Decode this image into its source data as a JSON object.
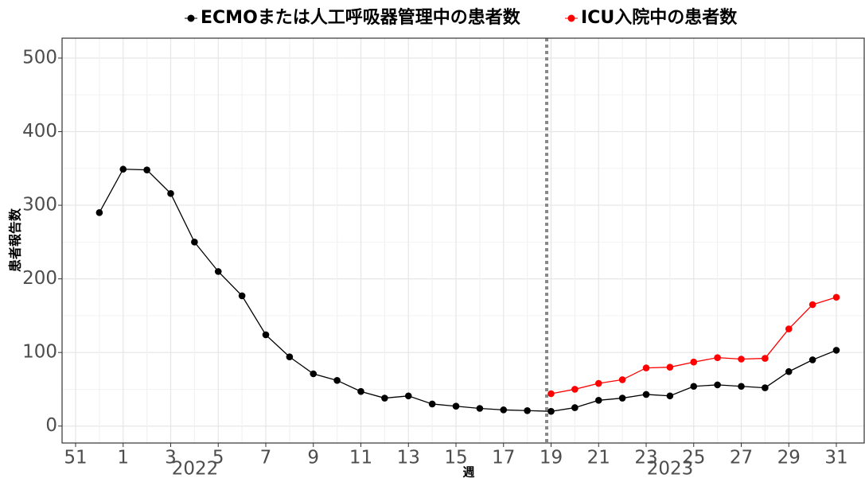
{
  "chart_data": {
    "type": "line",
    "y_label": "患者報告数",
    "x_label": "週",
    "annotations": [
      "2022",
      "2023"
    ],
    "categories": [
      "51",
      null,
      "1",
      null,
      "3",
      null,
      "5",
      null,
      "7",
      null,
      "9",
      null,
      "11",
      null,
      "13",
      null,
      "15",
      null,
      "17",
      null,
      "19",
      null,
      "21",
      null,
      "23",
      null,
      "25",
      null,
      "27",
      null,
      "29",
      null,
      "31"
    ],
    "series": [
      {
        "name": "ECMOまたは人工呼吸器管理中の患者数",
        "color": "#000000",
        "values": [
          null,
          290,
          349,
          348,
          316,
          250,
          210,
          177,
          124,
          94,
          71,
          62,
          47,
          38,
          41,
          30,
          27,
          24,
          22,
          21,
          20,
          25,
          35,
          38,
          43,
          41,
          54,
          56,
          54,
          52,
          74,
          90,
          103
        ]
      },
      {
        "name": "ICU入院中の患者数",
        "color": "#ff0000",
        "values": [
          null,
          null,
          null,
          null,
          null,
          null,
          null,
          null,
          null,
          null,
          null,
          null,
          null,
          null,
          null,
          null,
          null,
          null,
          null,
          null,
          44,
          50,
          58,
          63,
          79,
          80,
          87,
          93,
          91,
          92,
          132,
          165,
          175
        ]
      }
    ],
    "ylim": [
      -23,
      527
    ],
    "yticks": [
      0,
      100,
      200,
      300,
      400,
      500
    ],
    "grid": true
  }
}
